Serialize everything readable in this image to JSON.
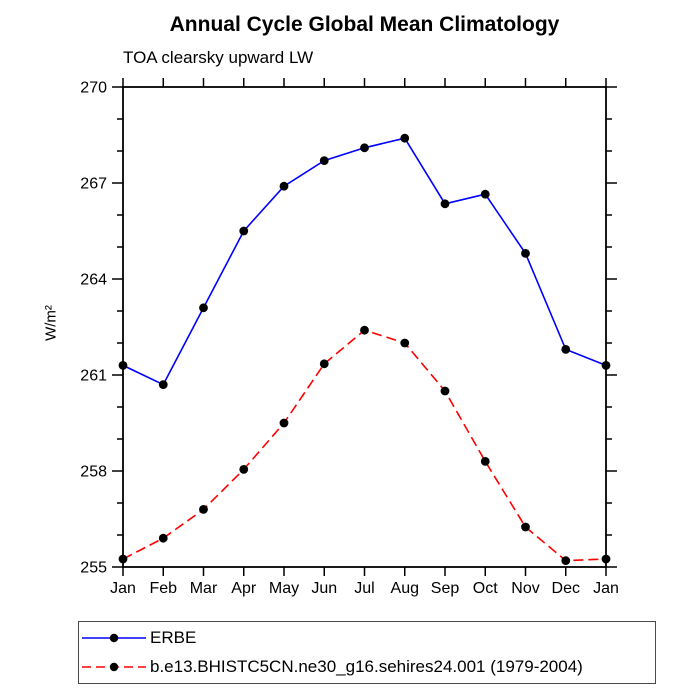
{
  "chart_data": {
    "type": "line",
    "title": "Annual Cycle Global Mean Climatology",
    "subtitle": "TOA clearsky upward LW",
    "ylabel": "W/m²",
    "x_categories": [
      "Jan",
      "Feb",
      "Mar",
      "Apr",
      "May",
      "Jun",
      "Jul",
      "Aug",
      "Sep",
      "Oct",
      "Nov",
      "Dec",
      "Jan"
    ],
    "ylim": [
      255,
      270
    ],
    "y_major_ticks": [
      255,
      258,
      261,
      264,
      267,
      270
    ],
    "y_minor_step": 1,
    "grid": false,
    "legend_position": "bottom-left-box",
    "axis_color": "#000000",
    "series": [
      {
        "name": "ERBE",
        "line_color": "#0000ff",
        "line_style": "solid",
        "marker": "filled-circle",
        "marker_color": "#000000",
        "values": [
          261.3,
          260.7,
          263.1,
          265.5,
          266.9,
          267.7,
          268.1,
          268.4,
          266.35,
          266.65,
          264.8,
          261.8,
          261.3
        ]
      },
      {
        "name": "b.e13.BHISTC5CN.ne30_g16.sehires24.001 (1979-2004)",
        "line_color": "#ff0000",
        "line_style": "dashed",
        "marker": "filled-circle",
        "marker_color": "#000000",
        "values": [
          255.25,
          255.9,
          256.8,
          258.05,
          259.5,
          261.35,
          262.4,
          262.0,
          260.5,
          258.3,
          256.25,
          255.2,
          255.25
        ]
      }
    ]
  }
}
